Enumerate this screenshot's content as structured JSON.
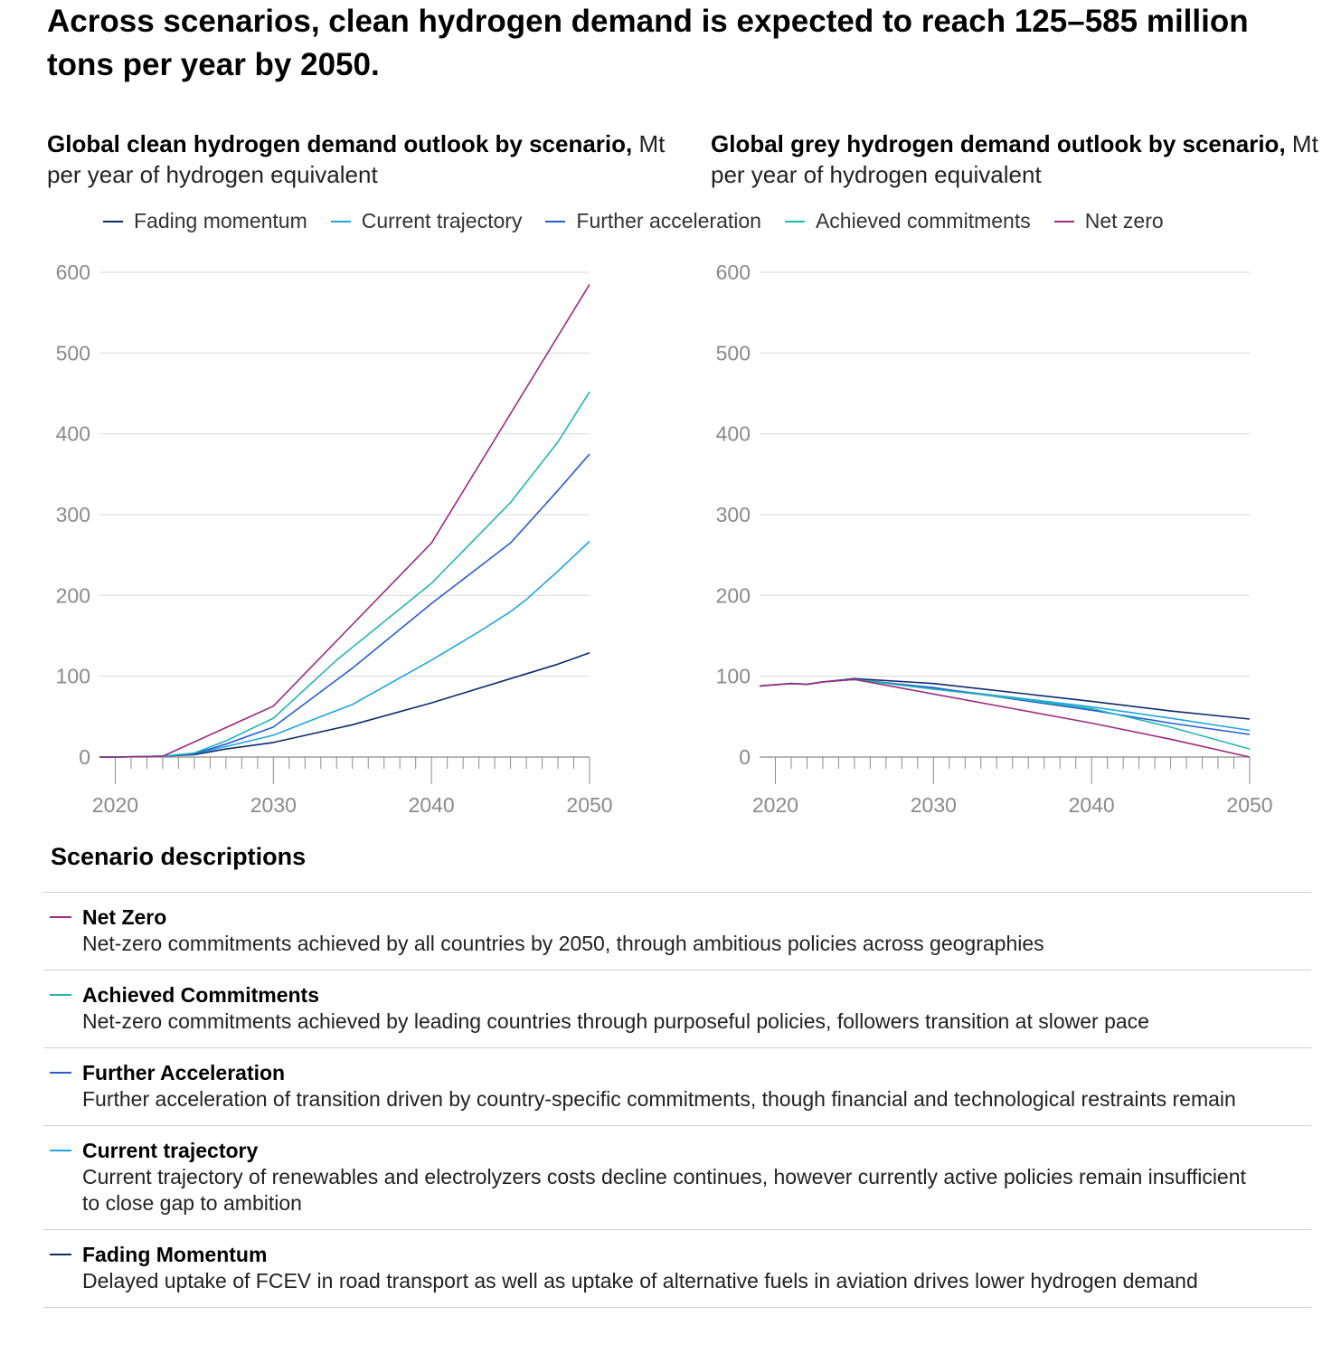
{
  "headline": "Across scenarios, clean hydrogen demand is expected to reach 125–585 million tons per year by 2050.",
  "colors": {
    "fading_momentum": "#0f2a6b",
    "current_trajectory": "#1fa5e0",
    "further_acceleration": "#2a5bd7",
    "achieved_commitments": "#25b5b0",
    "net_zero": "#9b2c7e",
    "grid": "#d9d9d9",
    "axis": "#8c8c8c"
  },
  "legend": [
    {
      "label": "Fading momentum",
      "key": "fading_momentum"
    },
    {
      "label": "Current trajectory",
      "key": "current_trajectory"
    },
    {
      "label": "Further acceleration",
      "key": "further_acceleration"
    },
    {
      "label": "Achieved commitments",
      "key": "achieved_commitments"
    },
    {
      "label": "Net zero",
      "key": "net_zero"
    }
  ],
  "chart_data": [
    {
      "type": "line",
      "title_bold": "Global clean hydrogen demand outlook by scenario,",
      "title_unit": "Mt per year of hydrogen equivalent",
      "xlim": [
        2019,
        2050
      ],
      "ylim": [
        0,
        600
      ],
      "yticks": [
        0,
        100,
        200,
        300,
        400,
        500,
        600
      ],
      "xticks": [
        2020,
        2030,
        2040,
        2050
      ],
      "grid": true,
      "series": [
        {
          "key": "fading_momentum",
          "name": "Fading momentum",
          "points": [
            [
              2019,
              0
            ],
            [
              2020,
              0
            ],
            [
              2023,
              1
            ],
            [
              2025,
              3
            ],
            [
              2027,
              10
            ],
            [
              2030,
              18
            ],
            [
              2035,
              40
            ],
            [
              2040,
              67
            ],
            [
              2045,
              97
            ],
            [
              2048,
              115
            ],
            [
              2050,
              129
            ]
          ]
        },
        {
          "key": "current_trajectory",
          "name": "Current trajectory",
          "points": [
            [
              2019,
              0
            ],
            [
              2020,
              0
            ],
            [
              2023,
              1
            ],
            [
              2025,
              4
            ],
            [
              2027,
              13
            ],
            [
              2030,
              27
            ],
            [
              2033,
              50
            ],
            [
              2035,
              65
            ],
            [
              2040,
              120
            ],
            [
              2043,
              155
            ],
            [
              2045,
              180
            ],
            [
              2046,
              195
            ],
            [
              2048,
              230
            ],
            [
              2050,
              267
            ]
          ]
        },
        {
          "key": "further_acceleration",
          "name": "Further acceleration",
          "points": [
            [
              2019,
              0
            ],
            [
              2020,
              0
            ],
            [
              2023,
              1
            ],
            [
              2025,
              4
            ],
            [
              2027,
              16
            ],
            [
              2030,
              37
            ],
            [
              2035,
              110
            ],
            [
              2040,
              190
            ],
            [
              2045,
              265
            ],
            [
              2048,
              330
            ],
            [
              2050,
              375
            ]
          ]
        },
        {
          "key": "achieved_commitments",
          "name": "Achieved commitments",
          "points": [
            [
              2019,
              0
            ],
            [
              2020,
              0
            ],
            [
              2023,
              1
            ],
            [
              2025,
              5
            ],
            [
              2027,
              20
            ],
            [
              2030,
              48
            ],
            [
              2034,
              120
            ],
            [
              2040,
              215
            ],
            [
              2045,
              315
            ],
            [
              2048,
              390
            ],
            [
              2050,
              452
            ]
          ]
        },
        {
          "key": "net_zero",
          "name": "Net zero",
          "points": [
            [
              2019,
              0
            ],
            [
              2020,
              0
            ],
            [
              2023,
              1
            ],
            [
              2030,
              63
            ],
            [
              2040,
              265
            ],
            [
              2050,
              585
            ]
          ]
        }
      ]
    },
    {
      "type": "line",
      "title_bold": "Global grey hydrogen demand outlook by scenario,",
      "title_unit": "Mt per year of hydrogen equivalent",
      "xlim": [
        2019,
        2050
      ],
      "ylim": [
        0,
        600
      ],
      "yticks": [
        0,
        100,
        200,
        300,
        400,
        500,
        600
      ],
      "xticks": [
        2020,
        2030,
        2040,
        2050
      ],
      "grid": true,
      "series": [
        {
          "key": "fading_momentum",
          "name": "Fading momentum",
          "points": [
            [
              2019,
              88
            ],
            [
              2021,
              91
            ],
            [
              2022,
              90
            ],
            [
              2023,
              93
            ],
            [
              2025,
              97
            ],
            [
              2030,
              91
            ],
            [
              2035,
              80
            ],
            [
              2040,
              69
            ],
            [
              2045,
              57
            ],
            [
              2050,
              47
            ]
          ]
        },
        {
          "key": "current_trajectory",
          "name": "Current trajectory",
          "points": [
            [
              2019,
              88
            ],
            [
              2021,
              91
            ],
            [
              2022,
              90
            ],
            [
              2023,
              93
            ],
            [
              2025,
              96
            ],
            [
              2030,
              85
            ],
            [
              2035,
              74
            ],
            [
              2040,
              62
            ],
            [
              2045,
              48
            ],
            [
              2050,
              33
            ]
          ]
        },
        {
          "key": "further_acceleration",
          "name": "Further acceleration",
          "points": [
            [
              2019,
              88
            ],
            [
              2021,
              91
            ],
            [
              2022,
              90
            ],
            [
              2023,
              93
            ],
            [
              2025,
              96
            ],
            [
              2030,
              86
            ],
            [
              2035,
              72
            ],
            [
              2040,
              58
            ],
            [
              2045,
              42
            ],
            [
              2050,
              28
            ]
          ]
        },
        {
          "key": "achieved_commitments",
          "name": "Achieved commitments",
          "points": [
            [
              2019,
              88
            ],
            [
              2021,
              91
            ],
            [
              2022,
              90
            ],
            [
              2023,
              93
            ],
            [
              2025,
              96
            ],
            [
              2030,
              84
            ],
            [
              2035,
              73
            ],
            [
              2040,
              60
            ],
            [
              2045,
              37
            ],
            [
              2050,
              10
            ]
          ]
        },
        {
          "key": "net_zero",
          "name": "Net zero",
          "points": [
            [
              2019,
              88
            ],
            [
              2021,
              91
            ],
            [
              2022,
              90
            ],
            [
              2023,
              93
            ],
            [
              2025,
              96
            ],
            [
              2030,
              78
            ],
            [
              2035,
              60
            ],
            [
              2040,
              42
            ],
            [
              2045,
              22
            ],
            [
              2050,
              0
            ]
          ]
        }
      ]
    }
  ],
  "descriptions": {
    "title": "Scenario descriptions",
    "items": [
      {
        "key": "net_zero",
        "name": "Net Zero",
        "text": "Net-zero commitments achieved by all countries by 2050, through ambitious policies across geographies"
      },
      {
        "key": "achieved_commitments",
        "name": "Achieved Commitments",
        "text": "Net-zero commitments achieved by leading countries through purposeful policies, followers transition at slower pace"
      },
      {
        "key": "further_acceleration",
        "name": "Further Acceleration",
        "text": "Further acceleration of transition driven by country-specific commitments, though financial and technological restraints remain"
      },
      {
        "key": "current_trajectory",
        "name": "Current trajectory",
        "text": "Current trajectory of renewables and electrolyzers costs decline continues, however currently active policies remain insufficient to close gap to ambition"
      },
      {
        "key": "fading_momentum",
        "name": "Fading Momentum",
        "text": "Delayed uptake of FCEV in road transport as well as uptake of alternative fuels in aviation drives lower hydrogen demand"
      }
    ]
  }
}
